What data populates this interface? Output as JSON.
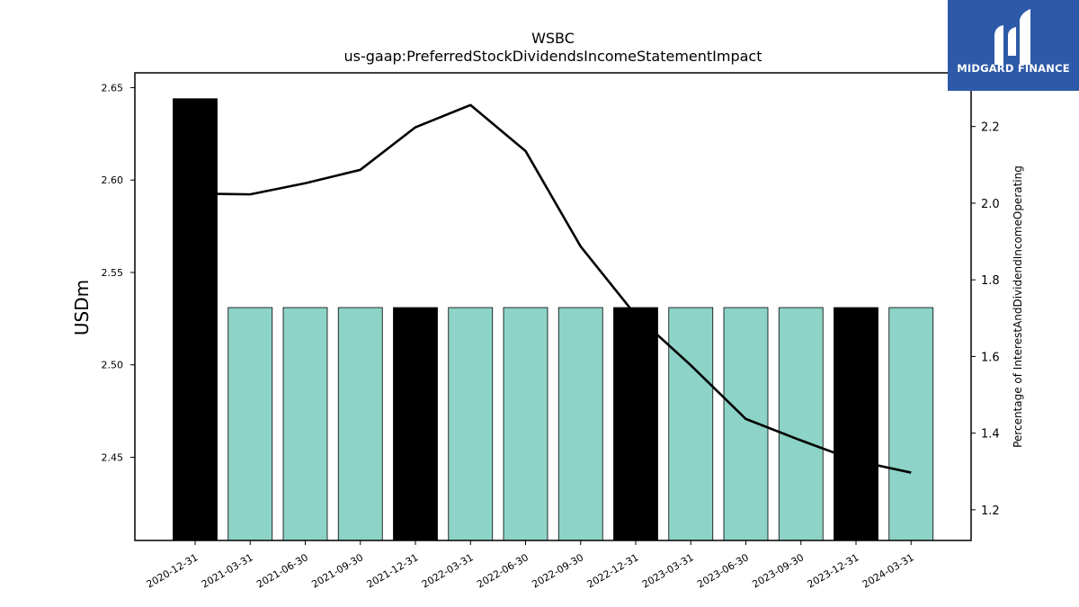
{
  "chart_data": {
    "type": "bar",
    "title": "WSBC",
    "subtitle": "us-gaap:PreferredStockDividendsIncomeStatementImpact",
    "ylabel": "USDm",
    "y2label": "Percentage of InterestAndDividendIncomeOperating",
    "categories": [
      "2020-12-31",
      "2021-03-31",
      "2021-06-30",
      "2021-09-30",
      "2021-12-31",
      "2022-03-31",
      "2022-06-30",
      "2022-09-30",
      "2022-12-31",
      "2023-03-31",
      "2023-06-30",
      "2023-09-30",
      "2023-12-31",
      "2024-03-31"
    ],
    "ylim": [
      2.405,
      2.658
    ],
    "y_ticks": [
      "2.45",
      "2.50",
      "2.55",
      "2.60",
      "2.65"
    ],
    "y2lim": [
      1.12,
      2.34
    ],
    "y2_ticks": [
      "1.2",
      "1.4",
      "1.6",
      "1.8",
      "2.0",
      "2.2"
    ],
    "grid": false,
    "series": [
      {
        "kind": "bar",
        "values": [
          2.644,
          2.531,
          2.531,
          2.531,
          2.531,
          2.531,
          2.531,
          2.531,
          2.531,
          2.531,
          2.531,
          2.531,
          2.531,
          2.531
        ],
        "colors": [
          "#000000",
          "#8dd3c7",
          "#8dd3c7",
          "#8dd3c7",
          "#000000",
          "#8dd3c7",
          "#8dd3c7",
          "#8dd3c7",
          "#000000",
          "#8dd3c7",
          "#8dd3c7",
          "#8dd3c7",
          "#000000",
          "#8dd3c7"
        ]
      },
      {
        "kind": "line",
        "axis": "right",
        "color": "#000000",
        "values": [
          2.025,
          2.023,
          2.052,
          2.087,
          2.198,
          2.256,
          2.136,
          1.887,
          1.708,
          1.577,
          1.437,
          1.381,
          1.328,
          1.297
        ]
      }
    ]
  },
  "logo": {
    "text": "MIDGARD FINANCE",
    "background": "#2d5aa8"
  }
}
